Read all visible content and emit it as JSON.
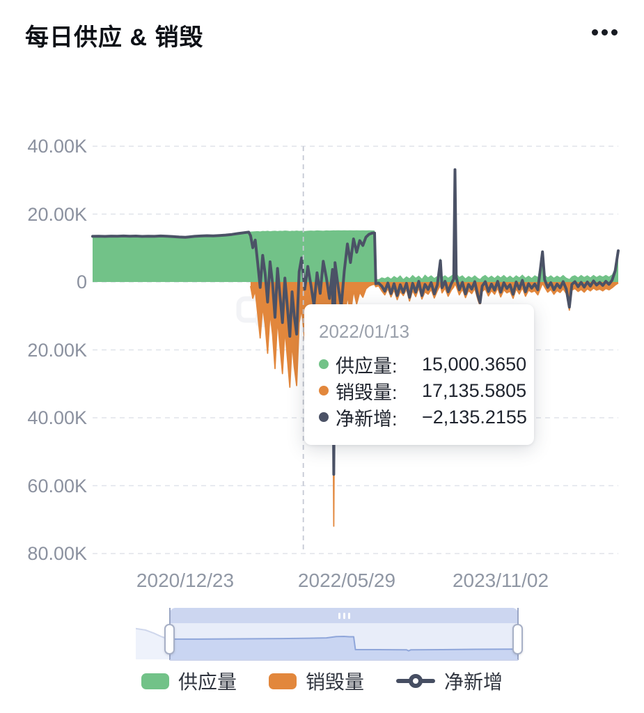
{
  "header": {
    "title": "每日供应 & 销毁",
    "menu_label": "more-options"
  },
  "tooltip": {
    "date": "2022/01/13",
    "rows": [
      {
        "label": "供应量:",
        "value": "15,000.3650",
        "color": "#72c288"
      },
      {
        "label": "销毁量:",
        "value": "17,135.5805",
        "color": "#e2873c"
      },
      {
        "label": "净新增:",
        "value": "−2,135.2155",
        "color": "#4b5266"
      }
    ]
  },
  "legend": {
    "items": [
      {
        "label": "供应量",
        "icon": "area-swatch",
        "color": "#72c288"
      },
      {
        "label": "销毁量",
        "icon": "area-swatch",
        "color": "#e2873c"
      },
      {
        "label": "净新增",
        "icon": "line-marker",
        "color": "#464e62"
      }
    ]
  },
  "chart_data": {
    "type": "area",
    "title": "每日供应 & 销毁",
    "series_names": [
      "供应量",
      "销毁量",
      "净新增"
    ],
    "note": "供应量 drawn as positive green area, 销毁量 as orange area mirrored below zero, 净新增 = 供应量 − 销毁量 drawn as dark line. t = days since chart start (~2020/02).",
    "ylim": [
      -80000,
      40000
    ],
    "y_ticks": [
      "40.00K",
      "20.00K",
      "0",
      "20.00K",
      "40.00K",
      "60.00K",
      "80.00K"
    ],
    "y_tick_values": [
      40000,
      20000,
      0,
      -20000,
      -40000,
      -60000,
      -80000
    ],
    "x_ticks": [
      "2020/12/23",
      "2022/05/29",
      "2023/11/02"
    ],
    "x_tick_t": [
      300,
      822,
      1319
    ],
    "t_range": [
      0,
      1700
    ],
    "hover_t": 686,
    "hover_point": {
      "date": "2022/01/13",
      "supply": 15000.365,
      "burn": 17135.5805,
      "net": -2135.2155
    },
    "grid": "dashed-horizontal",
    "legend_position": "bottom",
    "points": [
      [
        0,
        13450,
        null
      ],
      [
        20,
        13500,
        null
      ],
      [
        40,
        13430,
        null
      ],
      [
        60,
        13520,
        null
      ],
      [
        80,
        13470,
        null
      ],
      [
        100,
        13560,
        null
      ],
      [
        120,
        13480,
        null
      ],
      [
        140,
        13540,
        null
      ],
      [
        160,
        13430,
        null
      ],
      [
        180,
        13500,
        null
      ],
      [
        200,
        13460,
        null
      ],
      [
        220,
        13560,
        null
      ],
      [
        240,
        13500,
        null
      ],
      [
        260,
        13390,
        null
      ],
      [
        280,
        13250,
        null
      ],
      [
        300,
        13170,
        null
      ],
      [
        312,
        13270,
        null
      ],
      [
        330,
        13450,
        null
      ],
      [
        350,
        13560,
        null
      ],
      [
        370,
        13640,
        null
      ],
      [
        390,
        13610,
        null
      ],
      [
        410,
        13700,
        null
      ],
      [
        430,
        13830,
        null
      ],
      [
        450,
        14010,
        null
      ],
      [
        470,
        14280,
        null
      ],
      [
        490,
        14530,
        null
      ],
      [
        505,
        14690,
        null
      ],
      [
        511,
        14850,
        1200
      ],
      [
        518,
        14900,
        4800
      ],
      [
        526,
        14950,
        2600
      ],
      [
        534,
        15000,
        9500
      ],
      [
        542,
        14900,
        16500
      ],
      [
        550,
        15050,
        7200
      ],
      [
        558,
        15000,
        12500
      ],
      [
        566,
        15100,
        21000
      ],
      [
        574,
        14950,
        9000
      ],
      [
        582,
        15050,
        15500
      ],
      [
        590,
        15100,
        25500
      ],
      [
        598,
        15000,
        11000
      ],
      [
        606,
        15100,
        19000
      ],
      [
        614,
        15050,
        27000
      ],
      [
        622,
        15150,
        14000
      ],
      [
        630,
        15100,
        22500
      ],
      [
        638,
        15000,
        31000
      ],
      [
        645,
        15100,
        18000
      ],
      [
        652,
        15050,
        25000
      ],
      [
        660,
        15150,
        30500
      ],
      [
        668,
        15050,
        12000
      ],
      [
        676,
        15100,
        8000
      ],
      [
        686,
        15000.365,
        17135.5805
      ],
      [
        696,
        15100,
        10500
      ],
      [
        706,
        15150,
        16000
      ],
      [
        716,
        15100,
        22000
      ],
      [
        726,
        15200,
        12500
      ],
      [
        736,
        15150,
        18500
      ],
      [
        746,
        15100,
        9000
      ],
      [
        756,
        15200,
        14000
      ],
      [
        766,
        15150,
        20000
      ],
      [
        776,
        15200,
        11500
      ],
      [
        780,
        15250,
        71930
      ],
      [
        784,
        15200,
        9500
      ],
      [
        794,
        15250,
        16500
      ],
      [
        804,
        15200,
        22500
      ],
      [
        814,
        15250,
        12000
      ],
      [
        824,
        15200,
        4000
      ],
      [
        834,
        15250,
        9500
      ],
      [
        844,
        15200,
        2500
      ],
      [
        854,
        15250,
        6500
      ],
      [
        864,
        15200,
        3000
      ],
      [
        874,
        15250,
        4500
      ],
      [
        884,
        15200,
        2000
      ],
      [
        894,
        15250,
        1200
      ],
      [
        904,
        15200,
        800
      ],
      [
        912,
        15150,
        700
      ],
      [
        916,
        900,
        1400
      ],
      [
        925,
        800,
        1100
      ],
      [
        935,
        1400,
        2600
      ],
      [
        945,
        1100,
        3800
      ],
      [
        955,
        1600,
        1900
      ],
      [
        965,
        1000,
        4400
      ],
      [
        975,
        1800,
        2300
      ],
      [
        985,
        1200,
        5200
      ],
      [
        995,
        2000,
        2800
      ],
      [
        1005,
        900,
        4000
      ],
      [
        1015,
        1700,
        2100
      ],
      [
        1025,
        1100,
        5600
      ],
      [
        1035,
        2100,
        2500
      ],
      [
        1045,
        1300,
        4300
      ],
      [
        1055,
        1900,
        1700
      ],
      [
        1065,
        1000,
        5000
      ],
      [
        1075,
        2200,
        2900
      ],
      [
        1085,
        1400,
        3600
      ],
      [
        1095,
        2000,
        2200
      ],
      [
        1105,
        1200,
        4700
      ],
      [
        1115,
        1800,
        2600
      ],
      [
        1125,
        7200,
        900
      ],
      [
        1130,
        1500,
        3200
      ],
      [
        1140,
        2000,
        1800
      ],
      [
        1150,
        1300,
        4200
      ],
      [
        1160,
        1900,
        2400
      ],
      [
        1168,
        2400,
        1500
      ],
      [
        1172,
        33600,
        500
      ],
      [
        1176,
        2600,
        1200
      ],
      [
        1186,
        1500,
        3800
      ],
      [
        1196,
        2000,
        2100
      ],
      [
        1206,
        1100,
        4600
      ],
      [
        1216,
        1800,
        2500
      ],
      [
        1226,
        1300,
        3400
      ],
      [
        1236,
        2000,
        1900
      ],
      [
        1246,
        1200,
        5200
      ],
      [
        1253,
        900,
        7000
      ],
      [
        1260,
        1600,
        2800
      ],
      [
        1270,
        2100,
        2000
      ],
      [
        1280,
        1300,
        4100
      ],
      [
        1290,
        1900,
        2500
      ],
      [
        1300,
        1200,
        3600
      ],
      [
        1310,
        2000,
        1800
      ],
      [
        1320,
        1400,
        4400
      ],
      [
        1330,
        2100,
        2300
      ],
      [
        1340,
        1300,
        3200
      ],
      [
        1350,
        1900,
        2700
      ],
      [
        1360,
        1200,
        4800
      ],
      [
        1370,
        2000,
        2000
      ],
      [
        1380,
        1400,
        3500
      ],
      [
        1390,
        2200,
        1700
      ],
      [
        1400,
        1300,
        4200
      ],
      [
        1410,
        1900,
        2400
      ],
      [
        1420,
        1200,
        3000
      ],
      [
        1430,
        2000,
        2600
      ],
      [
        1440,
        1500,
        3800
      ],
      [
        1455,
        9300,
        400
      ],
      [
        1462,
        2200,
        1500
      ],
      [
        1472,
        1400,
        3000
      ],
      [
        1482,
        2000,
        2200
      ],
      [
        1492,
        1300,
        3600
      ],
      [
        1502,
        1900,
        2500
      ],
      [
        1512,
        1400,
        3100
      ],
      [
        1522,
        2100,
        2000
      ],
      [
        1532,
        1300,
        3400
      ],
      [
        1542,
        900,
        8300
      ],
      [
        1550,
        1700,
        2400
      ],
      [
        1560,
        2000,
        1900
      ],
      [
        1570,
        1400,
        2800
      ],
      [
        1580,
        2100,
        2200
      ],
      [
        1590,
        1500,
        3000
      ],
      [
        1600,
        2000,
        2000
      ],
      [
        1610,
        1400,
        2600
      ],
      [
        1620,
        2100,
        1800
      ],
      [
        1630,
        1500,
        2400
      ],
      [
        1640,
        2000,
        2100
      ],
      [
        1650,
        1600,
        2600
      ],
      [
        1660,
        2100,
        1900
      ],
      [
        1670,
        1600,
        2300
      ],
      [
        1680,
        2200,
        1700
      ],
      [
        1690,
        4200,
        900
      ],
      [
        1700,
        9500,
        300
      ]
    ],
    "slider_profile": [
      [
        -0.098,
        0.15
      ],
      [
        -0.07,
        0.19
      ],
      [
        -0.045,
        0.28
      ],
      [
        -0.025,
        0.37
      ],
      [
        -0.01,
        0.42
      ],
      [
        0,
        0.44
      ],
      [
        0.08,
        0.44
      ],
      [
        0.16,
        0.435
      ],
      [
        0.24,
        0.43
      ],
      [
        0.32,
        0.425
      ],
      [
        0.4,
        0.415
      ],
      [
        0.45,
        0.405
      ],
      [
        0.478,
        0.37
      ],
      [
        0.5,
        0.365
      ],
      [
        0.515,
        0.375
      ],
      [
        0.528,
        0.375
      ],
      [
        0.533,
        0.73
      ],
      [
        0.6,
        0.73
      ],
      [
        0.68,
        0.735
      ],
      [
        0.686,
        0.765
      ],
      [
        0.692,
        0.735
      ],
      [
        0.78,
        0.73
      ],
      [
        0.88,
        0.722
      ],
      [
        1,
        0.715
      ]
    ],
    "colors": {
      "supply": "#72c288",
      "burn": "#e2873c",
      "net": "#4b5266",
      "grid": "#e0e3ea",
      "hover_line": "#c5c9d4",
      "axis_text": "#8b919f",
      "dz_bar": "#ccd6f0",
      "dz_fill": "#c9d5f2",
      "dz_bg": "#e8edf9",
      "dz_line": "#8fa6da",
      "dz_tail_fill": "#eef2fb",
      "dz_tail_line": "#cfd7ec"
    }
  }
}
